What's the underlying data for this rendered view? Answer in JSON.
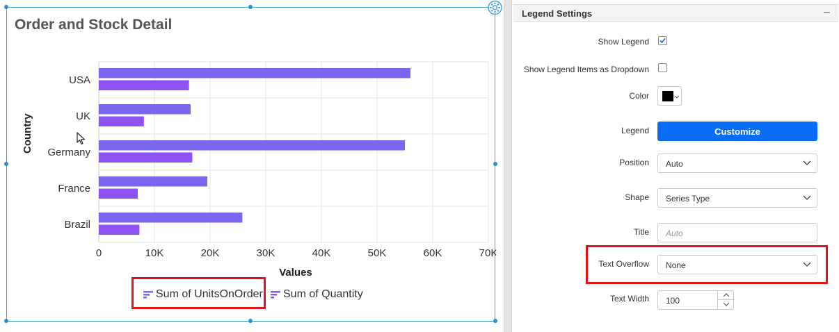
{
  "chart": {
    "title": "Order and Stock Detail",
    "legend_items": [
      {
        "label": "Sum of UnitsOnOrder",
        "color": "#7b66f0"
      },
      {
        "label": "Sum of Quantity",
        "color": "#8e52f2"
      }
    ]
  },
  "chart_data": {
    "type": "bar",
    "orientation": "horizontal",
    "title": "Order and Stock Detail",
    "xlabel": "Values",
    "ylabel": "Country",
    "categories": [
      "USA",
      "UK",
      "Germany",
      "France",
      "Brazil"
    ],
    "series": [
      {
        "name": "Sum of UnitsOnOrder",
        "values": [
          56000,
          16500,
          55000,
          19500,
          25800
        ],
        "color": "#7b66f0"
      },
      {
        "name": "Sum of Quantity",
        "values": [
          16200,
          8100,
          16800,
          7000,
          7300
        ],
        "color": "#8e52f2"
      }
    ],
    "xlim": [
      0,
      70000
    ],
    "x_ticks": [
      0,
      10000,
      20000,
      30000,
      40000,
      50000,
      60000,
      70000
    ],
    "x_tick_labels": [
      "0",
      "10K",
      "20K",
      "30K",
      "40K",
      "50K",
      "60K",
      "70K"
    ],
    "grid": true,
    "legend_position": "bottom"
  },
  "panel": {
    "title": "Legend Settings",
    "collapse_icon": "minus-icon",
    "show_legend_label": "Show Legend",
    "show_legend_checked": true,
    "dropdown_label": "Show Legend Items as Dropdown",
    "dropdown_checked": false,
    "color_label": "Color",
    "color_value": "#000000",
    "legend_label": "Legend",
    "customize_label": "Customize",
    "position_label": "Position",
    "position_value": "Auto",
    "shape_label": "Shape",
    "shape_value": "Series Type",
    "title_label": "Title",
    "title_placeholder": "Auto",
    "text_overflow_label": "Text Overflow",
    "text_overflow_value": "None",
    "text_width_label": "Text Width",
    "text_width_value": "100"
  }
}
